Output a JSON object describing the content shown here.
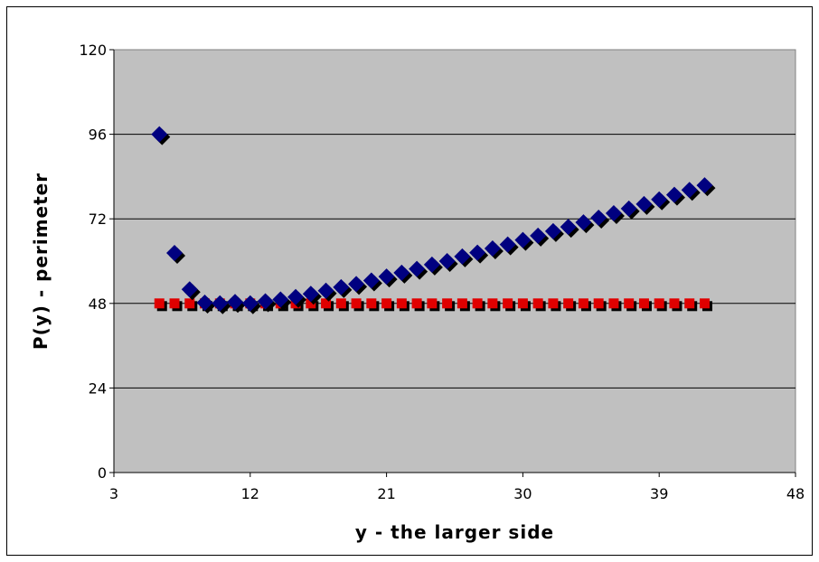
{
  "chart_data": {
    "type": "scatter",
    "title": "",
    "xlabel": "y - the larger side",
    "ylabel": "P(y) - perimeter",
    "xlim": [
      3,
      48
    ],
    "ylim": [
      0,
      120
    ],
    "x_ticks": [
      "3",
      "12",
      "21",
      "30",
      "39",
      "48"
    ],
    "y_ticks": [
      "0",
      "24",
      "48",
      "72",
      "96",
      "120"
    ],
    "grid": "horizontal major gridlines",
    "legend": "none",
    "colors": {
      "series1": "#000080",
      "series2": "#E00000",
      "plot_background": "#C0C0C0",
      "shadow": "#000000"
    },
    "series": [
      {
        "marker": "diamond",
        "x": [
          6,
          7,
          8,
          9,
          10,
          11,
          12,
          13,
          14,
          15,
          16,
          17,
          18,
          19,
          20,
          21,
          22,
          23,
          24,
          25,
          26,
          27,
          28,
          29,
          30,
          31,
          32,
          33,
          34,
          35,
          36,
          37,
          38,
          39,
          40,
          41,
          42
        ],
        "y": [
          96,
          62.3,
          52,
          48.2,
          48,
          48.4,
          48,
          48.6,
          49.1,
          49.8,
          50.7,
          51.6,
          52.6,
          53.5,
          54.5,
          55.6,
          56.7,
          57.8,
          59,
          60,
          61.3,
          62.4,
          63.6,
          64.7,
          66,
          67.2,
          68.5,
          69.7,
          71,
          72.3,
          73.6,
          74.9,
          76.2,
          77.5,
          78.8,
          80.2,
          81.5
        ]
      },
      {
        "marker": "square",
        "x": [
          6,
          7,
          8,
          9,
          10,
          11,
          12,
          13,
          14,
          15,
          16,
          17,
          18,
          19,
          20,
          21,
          22,
          23,
          24,
          25,
          26,
          27,
          28,
          29,
          30,
          31,
          32,
          33,
          34,
          35,
          36,
          37,
          38,
          39,
          40,
          41,
          42
        ],
        "y": [
          48,
          48,
          48,
          48,
          48,
          48,
          48,
          48,
          48,
          48,
          48,
          48,
          48,
          48,
          48,
          48,
          48,
          48,
          48,
          48,
          48,
          48,
          48,
          48,
          48,
          48,
          48,
          48,
          48,
          48,
          48,
          48,
          48,
          48,
          48,
          48,
          48
        ]
      }
    ]
  }
}
